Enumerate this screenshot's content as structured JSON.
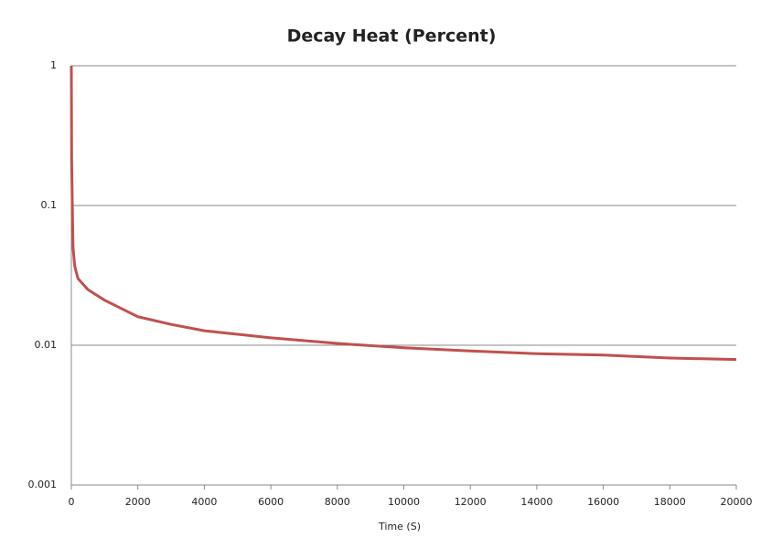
{
  "chart_data": {
    "type": "line",
    "title": "Decay Heat (Percent)",
    "x_label": "Time (S)",
    "x": [
      0,
      10,
      50,
      100,
      200,
      500,
      1000,
      2000,
      3000,
      4000,
      6000,
      8000,
      10000,
      12000,
      14000,
      16000,
      18000,
      20000
    ],
    "series": [
      {
        "name": "Decay Heat",
        "color": "#c0504d",
        "values": [
          1,
          0.2,
          0.051,
          0.037,
          0.03,
          0.025,
          0.021,
          0.016,
          0.0141,
          0.0127,
          0.0113,
          0.0103,
          0.0096,
          0.0091,
          0.0087,
          0.0085,
          0.0081,
          0.0079
        ]
      }
    ],
    "xlim": [
      0,
      20000
    ],
    "xticks": [
      0,
      2000,
      4000,
      6000,
      8000,
      10000,
      12000,
      14000,
      16000,
      18000,
      20000
    ],
    "ylim": [
      0.001,
      1
    ],
    "yticks": [
      0.001,
      0.01,
      0.1,
      1
    ],
    "log_y": true,
    "grid": true,
    "legend": false
  }
}
